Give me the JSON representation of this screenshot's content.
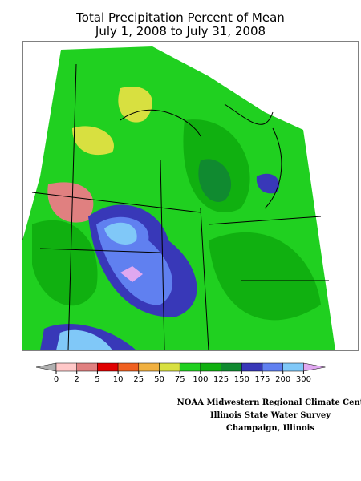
{
  "title": [
    "Total Precipitation Percent of Mean",
    "July 1, 2008 to July 31, 2008"
  ],
  "legend": {
    "ticks": [
      0,
      2,
      5,
      10,
      25,
      50,
      75,
      100,
      125,
      150,
      175,
      200,
      300
    ],
    "under_color": "#b0b0b0",
    "colors": [
      "#ffc8c8",
      "#e08080",
      "#e00000",
      "#f06020",
      "#f0b040",
      "#d8e040",
      "#20d020",
      "#10b010",
      "#108a30",
      "#3838b8",
      "#6080f0",
      "#80c8f8"
    ],
    "over_color": "#e0a8f0"
  },
  "credits": [
    "NOAA Midwestern Regional Climate Cent",
    "Illinois State Water Survey",
    "Champaign, Illinois"
  ]
}
